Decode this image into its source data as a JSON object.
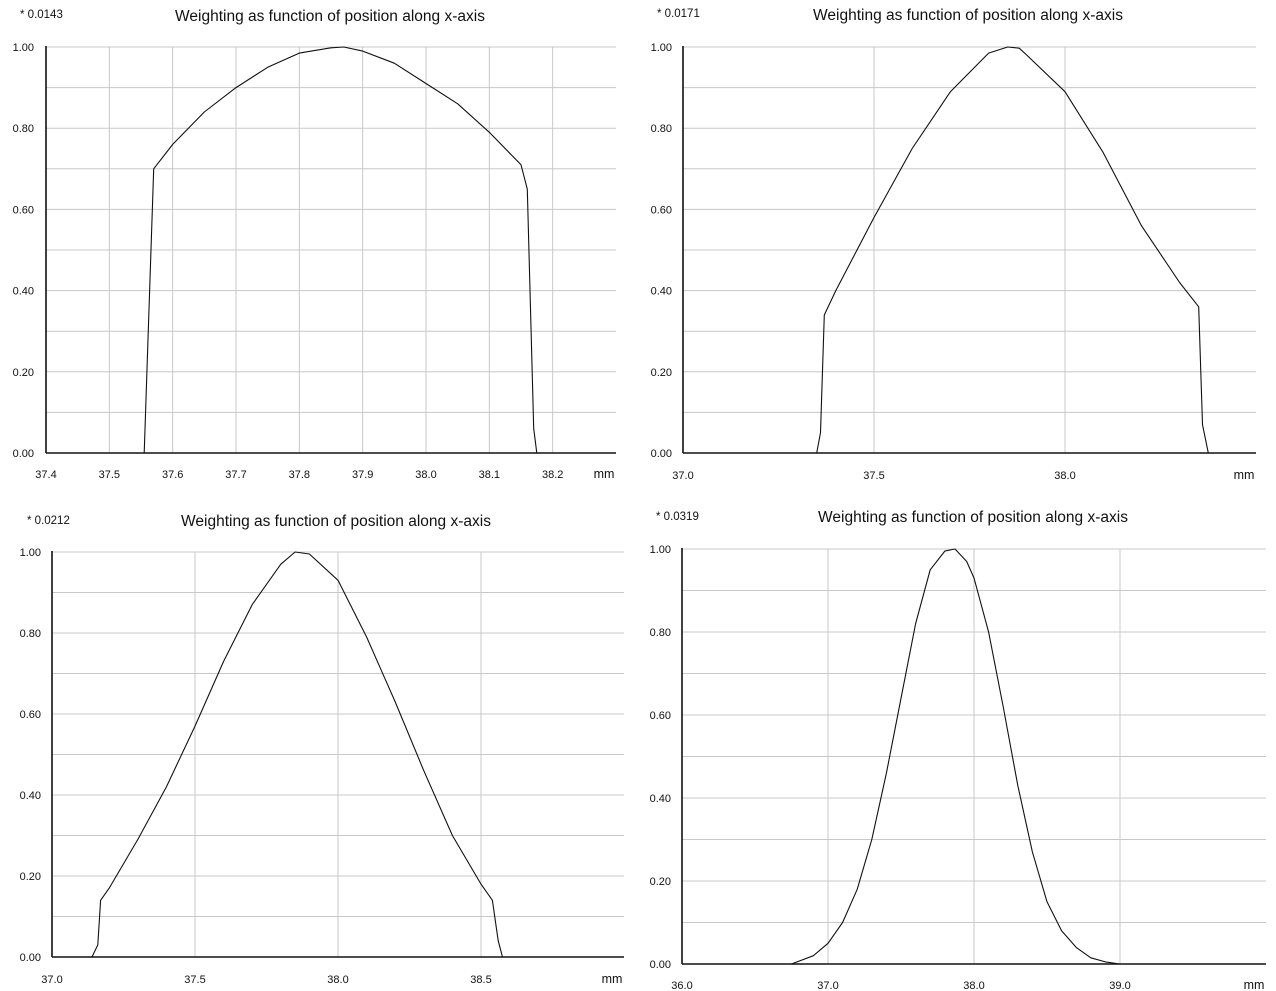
{
  "chart_data": [
    {
      "type": "line",
      "title": "Weighting as function of position along x-axis",
      "scale_label": "* 0.0143",
      "xlabel": "mm",
      "xlim": [
        37.4,
        38.3
      ],
      "ylim": [
        0,
        1
      ],
      "x_ticks": [
        37.4,
        37.5,
        37.6,
        37.7,
        37.8,
        37.9,
        38.0,
        38.1,
        38.2
      ],
      "x_tick_labels": [
        "37.4",
        "37.5",
        "37.6",
        "37.7",
        "37.8",
        "37.9",
        "38.0",
        "38.1",
        "38.2"
      ],
      "y_ticks": [
        0,
        0.2,
        0.4,
        0.6,
        0.8,
        1.0
      ],
      "y_tick_labels": [
        "0.00",
        "0.20",
        "0.40",
        "0.60",
        "0.80",
        "1.00"
      ],
      "grid": true,
      "series": [
        {
          "x": [
            37.555,
            37.57,
            37.6,
            37.65,
            37.7,
            37.75,
            37.8,
            37.85,
            37.87,
            37.9,
            37.95,
            38.0,
            38.05,
            38.1,
            38.15,
            38.16,
            38.17,
            38.175
          ],
          "y": [
            0.0,
            0.7,
            0.76,
            0.84,
            0.9,
            0.95,
            0.985,
            0.998,
            1.0,
            0.99,
            0.96,
            0.91,
            0.86,
            0.79,
            0.71,
            0.65,
            0.06,
            0.0
          ]
        }
      ]
    },
    {
      "type": "line",
      "title": "Weighting as function of position along x-axis",
      "scale_label": "* 0.0171",
      "xlabel": "mm",
      "xlim": [
        37.0,
        38.5
      ],
      "ylim": [
        0,
        1
      ],
      "x_ticks": [
        37.0,
        37.5,
        38.0
      ],
      "x_tick_labels": [
        "37.0",
        "37.5",
        "38.0"
      ],
      "y_ticks": [
        0,
        0.2,
        0.4,
        0.6,
        0.8,
        1.0
      ],
      "y_tick_labels": [
        "0.00",
        "0.20",
        "0.40",
        "0.60",
        "0.80",
        "1.00"
      ],
      "grid": true,
      "series": [
        {
          "x": [
            37.35,
            37.36,
            37.37,
            37.4,
            37.5,
            37.6,
            37.7,
            37.8,
            37.85,
            37.88,
            37.9,
            38.0,
            38.1,
            38.2,
            38.3,
            38.35,
            38.36,
            38.375
          ],
          "y": [
            0.0,
            0.05,
            0.34,
            0.4,
            0.58,
            0.75,
            0.89,
            0.985,
            1.0,
            0.997,
            0.98,
            0.89,
            0.74,
            0.56,
            0.42,
            0.36,
            0.07,
            0.0
          ]
        }
      ]
    },
    {
      "type": "line",
      "title": "Weighting as function of position along x-axis",
      "scale_label": "* 0.0212",
      "xlabel": "mm",
      "xlim": [
        37.0,
        39.0
      ],
      "ylim": [
        0,
        1
      ],
      "x_ticks": [
        37.0,
        37.5,
        38.0,
        38.5
      ],
      "x_tick_labels": [
        "37.0",
        "37.5",
        "38.0",
        "38.5"
      ],
      "y_ticks": [
        0,
        0.2,
        0.4,
        0.6,
        0.8,
        1.0
      ],
      "y_tick_labels": [
        "0.00",
        "0.20",
        "0.40",
        "0.60",
        "0.80",
        "1.00"
      ],
      "grid": true,
      "series": [
        {
          "x": [
            37.14,
            37.16,
            37.17,
            37.2,
            37.3,
            37.4,
            37.5,
            37.6,
            37.7,
            37.8,
            37.85,
            37.9,
            38.0,
            38.1,
            38.2,
            38.3,
            38.4,
            38.5,
            38.54,
            38.56,
            38.575
          ],
          "y": [
            0.0,
            0.03,
            0.14,
            0.17,
            0.29,
            0.42,
            0.57,
            0.73,
            0.87,
            0.97,
            1.0,
            0.995,
            0.93,
            0.79,
            0.63,
            0.46,
            0.3,
            0.18,
            0.14,
            0.04,
            0.0
          ]
        }
      ]
    },
    {
      "type": "line",
      "title": "Weighting as function of position along x-axis",
      "scale_label": "* 0.0319",
      "xlabel": "mm",
      "xlim": [
        36.0,
        40.0
      ],
      "ylim": [
        0,
        1
      ],
      "x_ticks": [
        36.0,
        37.0,
        38.0,
        39.0
      ],
      "x_tick_labels": [
        "36.0",
        "37.0",
        "38.0",
        "39.0"
      ],
      "y_ticks": [
        0,
        0.2,
        0.4,
        0.6,
        0.8,
        1.0
      ],
      "y_tick_labels": [
        "0.00",
        "0.20",
        "0.40",
        "0.60",
        "0.80",
        "1.00"
      ],
      "grid": true,
      "series": [
        {
          "x": [
            36.75,
            36.9,
            37.0,
            37.1,
            37.2,
            37.3,
            37.4,
            37.5,
            37.6,
            37.7,
            37.8,
            37.87,
            37.95,
            38.0,
            38.1,
            38.2,
            38.3,
            38.4,
            38.5,
            38.6,
            38.7,
            38.8,
            38.9,
            39.0
          ],
          "y": [
            0.0,
            0.02,
            0.05,
            0.1,
            0.18,
            0.3,
            0.46,
            0.64,
            0.82,
            0.95,
            0.995,
            1.0,
            0.97,
            0.93,
            0.8,
            0.62,
            0.43,
            0.27,
            0.15,
            0.08,
            0.04,
            0.015,
            0.005,
            0.0
          ]
        }
      ]
    }
  ]
}
